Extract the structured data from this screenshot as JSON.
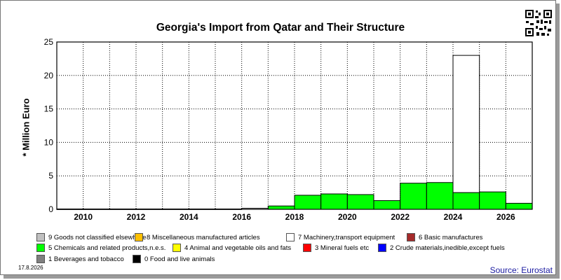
{
  "title": "Georgia's Import from Qatar and Their Structure",
  "date": "17.8.2026",
  "source": "Source: Eurostat",
  "legend": [
    {
      "label": "9 Goods not classified elsewhere",
      "color": "#c0c0c0"
    },
    {
      "label": "8 Miscellaneous manufactured articles",
      "color": "#ffc000"
    },
    {
      "label": "7 Machinery,transport equipment",
      "color": "#ffffff"
    },
    {
      "label": "6 Basic manufactures",
      "color": "#a52a2a"
    },
    {
      "label": "5 Chemicals and related products,n.e.s.",
      "color": "#00ff00"
    },
    {
      "label": "4 Animal and vegetable oils and fats",
      "color": "#ffff00"
    },
    {
      "label": "3 Mineral fuels etc",
      "color": "#ff0000"
    },
    {
      "label": "2 Crude materials,inedible,except fuels",
      "color": "#0000ff"
    },
    {
      "label": "1 Beverages and tobacco",
      "color": "#808080"
    },
    {
      "label": "0 Food and live animals",
      "color": "#000000"
    }
  ],
  "chart_data": {
    "type": "bar",
    "stacked": true,
    "title": "Georgia's Import from Qatar and Their Structure",
    "ylabel": "* Million Euro",
    "xlabel": "",
    "ylim": [
      0,
      25
    ],
    "yticks": [
      0,
      5,
      10,
      15,
      20,
      25
    ],
    "xtick_labels": [
      "2010",
      "2012",
      "2014",
      "2016",
      "2018",
      "2020",
      "2022",
      "2024",
      "2026"
    ],
    "categories": [
      "2009",
      "2010",
      "2011",
      "2012",
      "2013",
      "2014",
      "2015",
      "2016",
      "2017",
      "2018",
      "2019",
      "2020",
      "2021",
      "2022",
      "2023",
      "2024",
      "2025",
      "2026"
    ],
    "grid": true,
    "series": [
      {
        "name": "5 Chemicals and related products,n.e.s.",
        "color": "#00ff00",
        "values": [
          0,
          0,
          0,
          0,
          0,
          0,
          0,
          0,
          0.5,
          2.1,
          2.3,
          2.2,
          1.3,
          3.9,
          4.0,
          2.5,
          2.6,
          0.9
        ]
      },
      {
        "name": "7 Machinery,transport equipment",
        "color": "#ffffff",
        "values": [
          0.05,
          0.05,
          0.05,
          0.05,
          0.05,
          0.05,
          0.05,
          0.15,
          0,
          0,
          0,
          0,
          0,
          0,
          0,
          20.5,
          0,
          0
        ]
      }
    ]
  }
}
